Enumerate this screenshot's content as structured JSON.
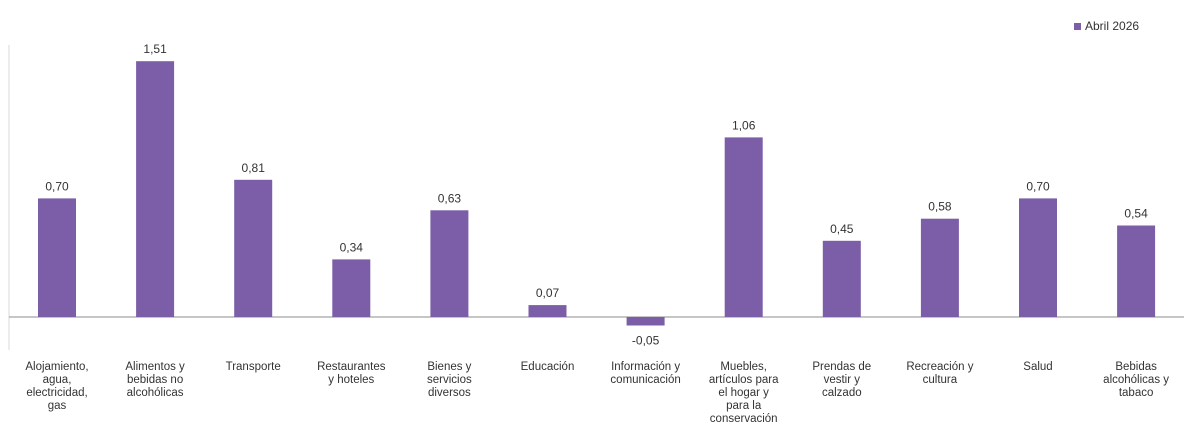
{
  "chart_data": {
    "type": "bar",
    "categories": [
      "Alojamiento,\nagua,\nelectricidad,\ngas",
      "Alimentos y\nbebidas no\nalcohólicas",
      "Transporte",
      "Restaurantes\ny hoteles",
      "Bienes y\nservicios\ndiversos",
      "Educación",
      "Información y\ncomunicación",
      "Muebles,\nartículos para\nel hogar y\npara la\nconservación",
      "Prendas de\nvestir y\ncalzado",
      "Recreación y\ncultura",
      "Salud",
      "Bebidas\nalcohólicas y\ntabaco"
    ],
    "series": [
      {
        "name": "Abril 2026",
        "values": [
          0.7,
          1.51,
          0.81,
          0.34,
          0.63,
          0.07,
          -0.05,
          1.06,
          0.45,
          0.58,
          0.7,
          0.54
        ],
        "labels": [
          "0,70",
          "1,51",
          "0,81",
          "0,34",
          "0,63",
          "0,07",
          "-0,05",
          "1,06",
          "0,45",
          "0,58",
          "0,70",
          "0,54"
        ],
        "color": "#7b5ea7"
      }
    ],
    "legend_position": "top-right",
    "grid": false,
    "ylim": [
      -0.05,
      1.51
    ]
  }
}
